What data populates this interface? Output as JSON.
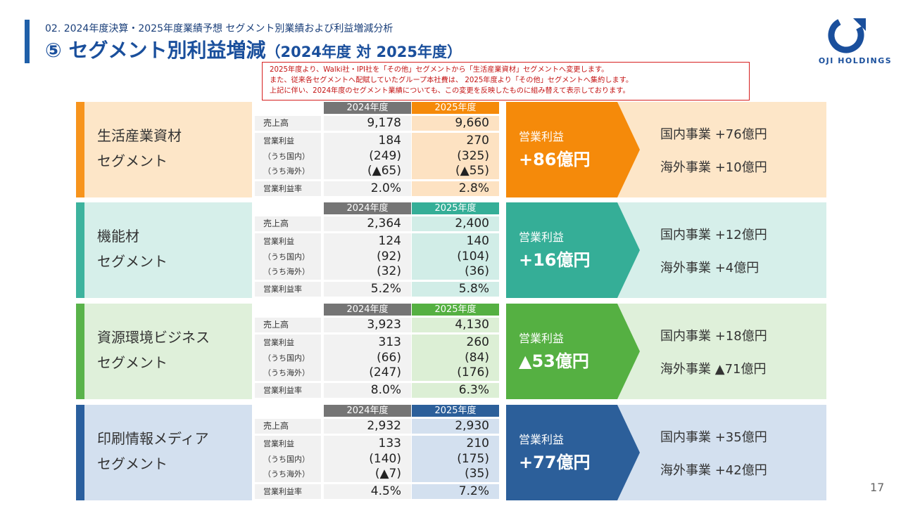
{
  "header": {
    "subtitle": "02. 2024年度決算・2025年度業績予想 セグメント別業績および利益増減分析",
    "title_main": "⑤ セグメント別利益増減",
    "title_paren": "（2024年度 対 2025年度）"
  },
  "logo": {
    "text": "OJI HOLDINGS",
    "icon": "oji-logo-icon"
  },
  "notice": {
    "lines": [
      "2025年度より、Walki社・IPI社を「その他」セグメントから「生活産業資材」セグメントへ変更します。",
      "また、従来各セグメントへ配賦していたグループ本社費は、 2025年度より「その他」セグメントへ集約します。",
      "上記に伴い、2024年度のセグメント業績についても、この変更を反映したものに組み替えて表示しております。"
    ]
  },
  "table_labels": {
    "year_2024": "2024年度",
    "year_2025": "2025年度",
    "sales": "売上高",
    "op_profit": "営業利益",
    "domestic": "（うち国内）",
    "overseas": "（うち海外）",
    "margin": "営業利益率"
  },
  "segments": [
    {
      "name_line1": "生活産業資材",
      "name_line2": "セグメント",
      "colors": {
        "strip": "#f7941d",
        "band": "#fde6c8",
        "accent": "#f58a0a",
        "light": "#fde2c2"
      },
      "sales": [
        "9,178",
        "9,660"
      ],
      "op_profit": [
        "184",
        "270"
      ],
      "domestic": [
        "(249)",
        "(325)"
      ],
      "overseas": [
        "(▲65)",
        "(▲55)"
      ],
      "margin": [
        "2.0%",
        "2.8%"
      ],
      "arrow_label": "営業利益",
      "arrow_value": "+86億円",
      "domestic_change": "国内事業 +76億円",
      "overseas_change": "海外事業 +10億円"
    },
    {
      "name_line1": "機能材",
      "name_line2": "セグメント",
      "colors": {
        "strip": "#3db39e",
        "band": "#d6efea",
        "accent": "#35ae97",
        "light": "#d1ede7"
      },
      "sales": [
        "2,364",
        "2,400"
      ],
      "op_profit": [
        "124",
        "140"
      ],
      "domestic": [
        "(92)",
        "(104)"
      ],
      "overseas": [
        "(32)",
        "(36)"
      ],
      "margin": [
        "5.2%",
        "5.8%"
      ],
      "arrow_label": "営業利益",
      "arrow_value": "+16億円",
      "domestic_change": "国内事業 +12億円",
      "overseas_change": "海外事業 +4億円"
    },
    {
      "name_line1": "資源環境ビジネス",
      "name_line2": "セグメント",
      "colors": {
        "strip": "#59b34a",
        "band": "#dff0da",
        "accent": "#55b042",
        "light": "#dcefd5"
      },
      "sales": [
        "3,923",
        "4,130"
      ],
      "op_profit": [
        "313",
        "260"
      ],
      "domestic": [
        "(66)",
        "(84)"
      ],
      "overseas": [
        "(247)",
        "(176)"
      ],
      "margin": [
        "8.0%",
        "6.3%"
      ],
      "arrow_label": "営業利益",
      "arrow_value": "▲53億円",
      "domestic_change": "国内事業 +18億円",
      "overseas_change": "海外事業 ▲71億円"
    },
    {
      "name_line1": "印刷情報メディア",
      "name_line2": "セグメント",
      "colors": {
        "strip": "#2a5f9e",
        "band": "#d3e0ef",
        "accent": "#2c5f9a",
        "light": "#d3e0ef"
      },
      "sales": [
        "2,932",
        "2,930"
      ],
      "op_profit": [
        "133",
        "210"
      ],
      "domestic": [
        "(140)",
        "(175)"
      ],
      "overseas": [
        "(▲7)",
        "(35)"
      ],
      "margin": [
        "4.5%",
        "7.2%"
      ],
      "arrow_label": "営業利益",
      "arrow_value": "+77億円",
      "domestic_change": "国内事業 +35億円",
      "overseas_change": "海外事業 +42億円"
    }
  ],
  "page_number": "17"
}
